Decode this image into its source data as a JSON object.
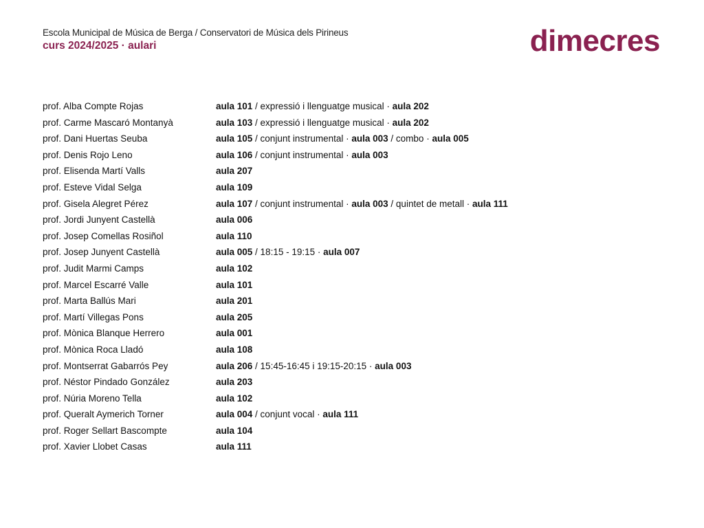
{
  "header": {
    "organization": "Escola Municipal de Música de Berga / Conservatori de Música dels Pirineus",
    "subtitle": "curs 2024/2025 · aulari",
    "day": "dimecres",
    "accent_color": "#8a2150"
  },
  "rows": [
    {
      "name": "prof. Alba Compte Rojas",
      "parts": [
        {
          "t": "aula 101",
          "b": true
        },
        {
          "t": " / expressió i llenguatge musical · ",
          "b": false
        },
        {
          "t": "aula 202",
          "b": true
        }
      ]
    },
    {
      "name": "prof. Carme Mascaró Montanyà",
      "parts": [
        {
          "t": "aula 103",
          "b": true
        },
        {
          "t": " / expressió i llenguatge musical · ",
          "b": false
        },
        {
          "t": "aula 202",
          "b": true
        }
      ]
    },
    {
      "name": "prof. Dani Huertas Seuba",
      "parts": [
        {
          "t": "aula 105",
          "b": true
        },
        {
          "t": " / conjunt instrumental · ",
          "b": false
        },
        {
          "t": "aula 003",
          "b": true
        },
        {
          "t": " / combo · ",
          "b": false
        },
        {
          "t": "aula 005",
          "b": true
        }
      ]
    },
    {
      "name": "prof. Denis Rojo Leno",
      "parts": [
        {
          "t": "aula 106",
          "b": true
        },
        {
          "t": " / conjunt instrumental · ",
          "b": false
        },
        {
          "t": "aula 003",
          "b": true
        }
      ]
    },
    {
      "name": "prof. Elisenda Martí Valls",
      "parts": [
        {
          "t": "aula 207",
          "b": true
        }
      ]
    },
    {
      "name": "prof. Esteve Vidal Selga",
      "parts": [
        {
          "t": "aula 109",
          "b": true
        }
      ]
    },
    {
      "name": "prof. Gisela Alegret Pérez",
      "parts": [
        {
          "t": "aula 107",
          "b": true
        },
        {
          "t": " / conjunt instrumental · ",
          "b": false
        },
        {
          "t": "aula 003",
          "b": true
        },
        {
          "t": " / quintet de metall · ",
          "b": false
        },
        {
          "t": "aula 111",
          "b": true
        }
      ]
    },
    {
      "name": "prof. Jordi Junyent Castellà",
      "parts": [
        {
          "t": "aula 006",
          "b": true
        }
      ]
    },
    {
      "name": "prof. Josep Comellas Rosiñol",
      "parts": [
        {
          "t": "aula 110",
          "b": true
        }
      ]
    },
    {
      "name": "prof. Josep Junyent Castellà",
      "parts": [
        {
          "t": "aula 005",
          "b": true
        },
        {
          "t": " / 18:15 - 19:15 · ",
          "b": false
        },
        {
          "t": "aula 007",
          "b": true
        }
      ]
    },
    {
      "name": "prof. Judit Marmi Camps",
      "parts": [
        {
          "t": "aula 102",
          "b": true
        }
      ]
    },
    {
      "name": "prof. Marcel Escarré Valle",
      "parts": [
        {
          "t": "aula 101",
          "b": true
        }
      ]
    },
    {
      "name": "prof. Marta Ballús Mari",
      "parts": [
        {
          "t": "aula 201",
          "b": true
        }
      ]
    },
    {
      "name": "prof. Martí Villegas Pons",
      "parts": [
        {
          "t": "aula 205",
          "b": true
        }
      ]
    },
    {
      "name": "prof. Mònica Blanque Herrero",
      "parts": [
        {
          "t": "aula 001",
          "b": true
        }
      ]
    },
    {
      "name": "prof. Mònica Roca Lladó",
      "parts": [
        {
          "t": "aula 108",
          "b": true
        }
      ]
    },
    {
      "name": "prof. Montserrat Gabarrós Pey",
      "parts": [
        {
          "t": "aula 206",
          "b": true
        },
        {
          "t": " / 15:45-16:45 i 19:15-20:15 · ",
          "b": false
        },
        {
          "t": "aula 003",
          "b": true
        }
      ]
    },
    {
      "name": "prof. Néstor Pindado González",
      "parts": [
        {
          "t": "aula 203",
          "b": true
        }
      ]
    },
    {
      "name": "prof. Núria Moreno Tella",
      "parts": [
        {
          "t": "aula 102",
          "b": true
        }
      ]
    },
    {
      "name": "prof. Queralt Aymerich Torner",
      "parts": [
        {
          "t": "aula 004",
          "b": true
        },
        {
          "t": " / conjunt vocal · ",
          "b": false
        },
        {
          "t": "aula 111",
          "b": true
        }
      ]
    },
    {
      "name": "prof. Roger Sellart Bascompte",
      "parts": [
        {
          "t": "aula 104",
          "b": true
        }
      ]
    },
    {
      "name": "prof. Xavier Llobet Casas",
      "parts": [
        {
          "t": "aula 111",
          "b": true
        }
      ]
    }
  ]
}
